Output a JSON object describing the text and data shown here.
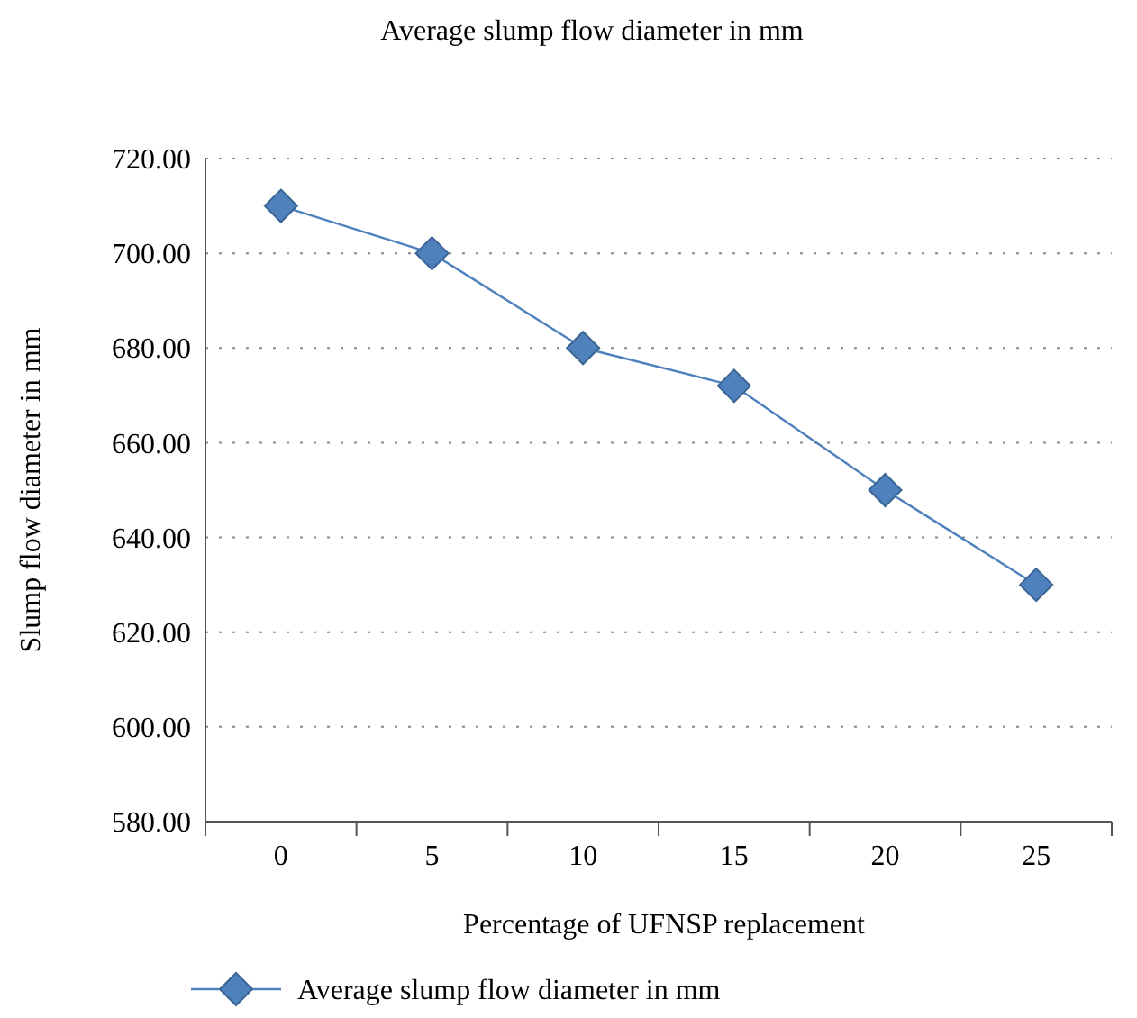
{
  "chart_data": {
    "type": "line",
    "title": "Average slump flow diameter in mm",
    "xlabel": "Percentage of UFNSP replacement",
    "ylabel": "Slump flow diameter in mm",
    "categories": [
      "0",
      "5",
      "10",
      "15",
      "20",
      "25"
    ],
    "series": [
      {
        "name": "Average slump flow diameter in mm",
        "color": "#4f81bd",
        "values": [
          710,
          700,
          680,
          672,
          650,
          630
        ]
      }
    ],
    "ylim": [
      580,
      720
    ],
    "yticks": [
      {
        "value": 580,
        "label": "580.00"
      },
      {
        "value": 600,
        "label": "600.00"
      },
      {
        "value": 620,
        "label": "620.00"
      },
      {
        "value": 640,
        "label": "640.00"
      },
      {
        "value": 660,
        "label": "660.00"
      },
      {
        "value": 680,
        "label": "680.00"
      },
      {
        "value": 700,
        "label": "700.00"
      },
      {
        "value": 720,
        "label": "720.00"
      }
    ],
    "grid": "y",
    "legend": "bottom",
    "marker": "diamond",
    "line_style": "solid"
  }
}
